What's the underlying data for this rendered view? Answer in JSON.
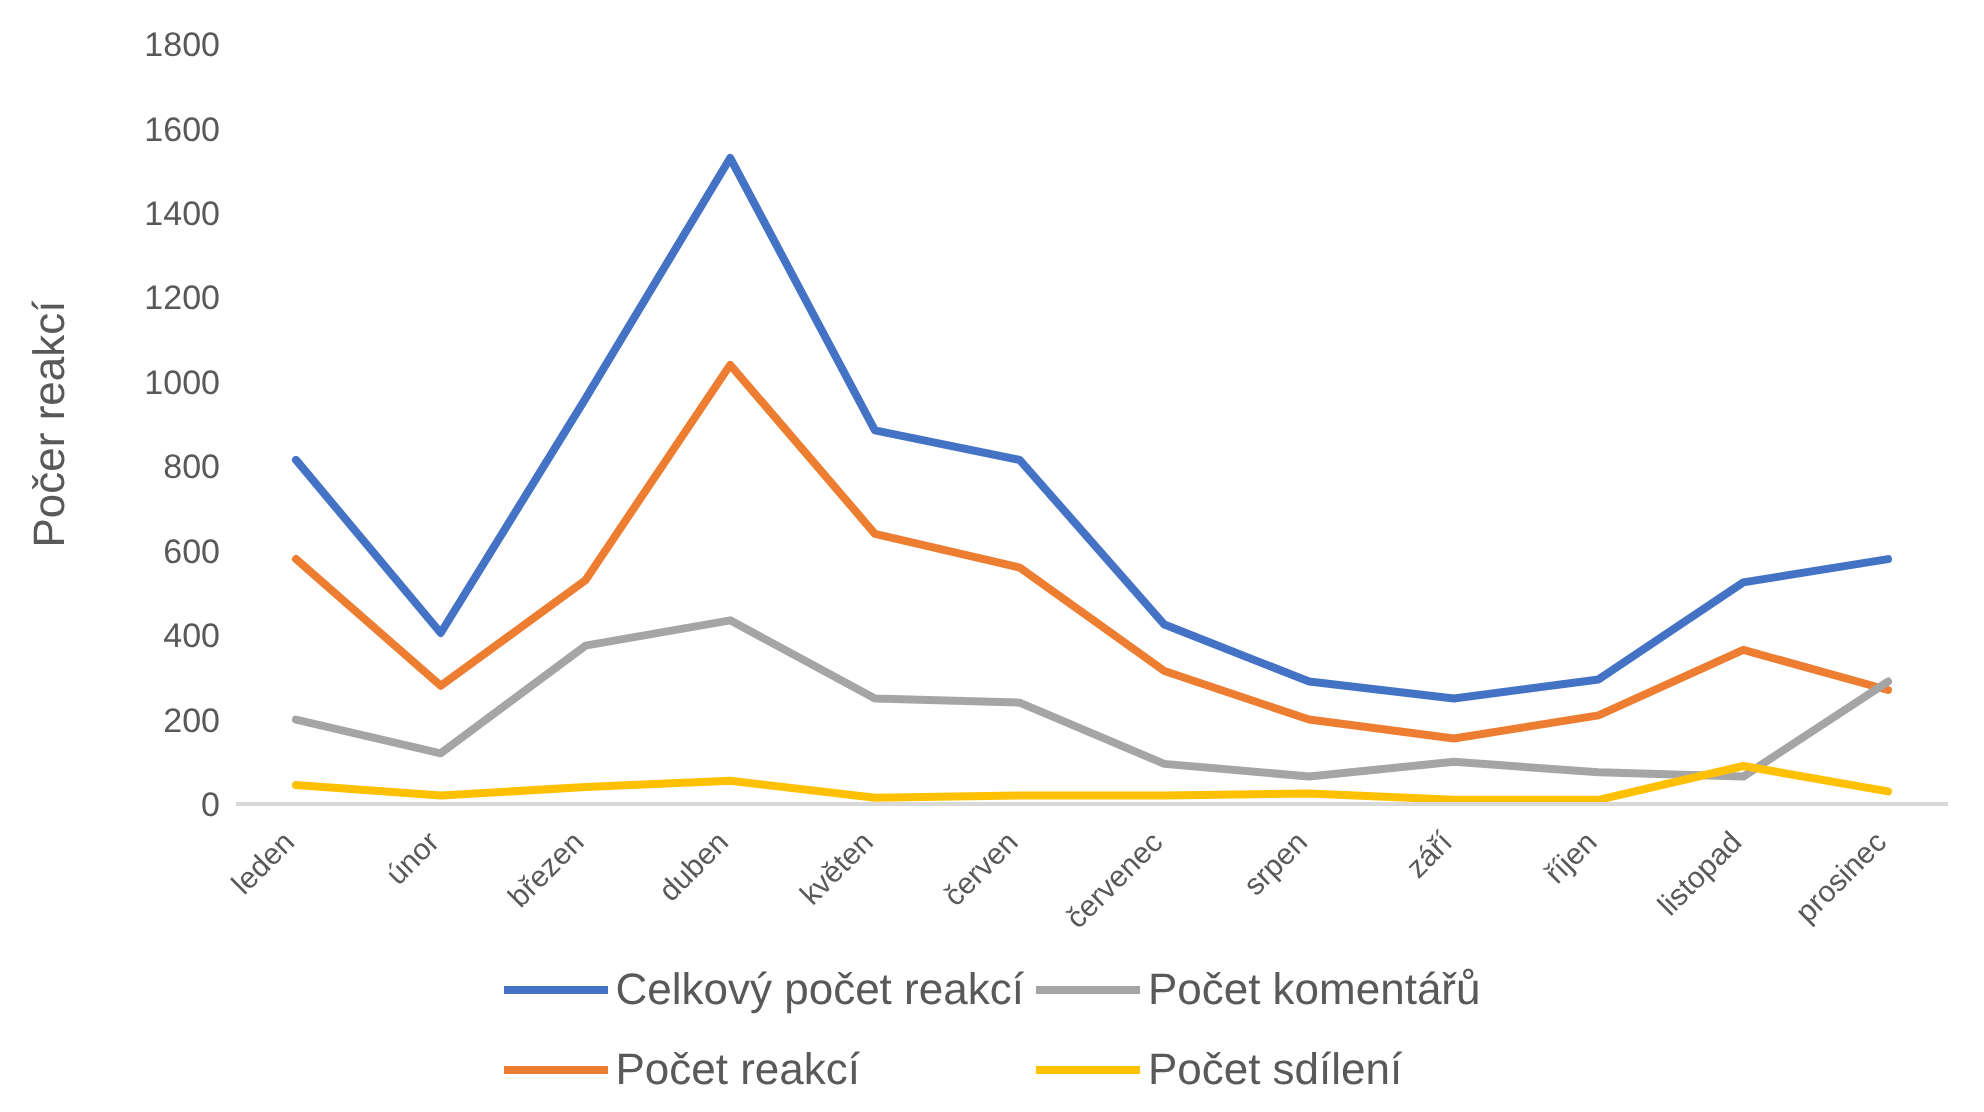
{
  "chart_data": {
    "type": "line",
    "ylabel": "Počer reakcí",
    "categories": [
      "leden",
      "únor",
      "březen",
      "duben",
      "květen",
      "červen",
      "červenec",
      "srpen",
      "září",
      "říjen",
      "listopad",
      "prosinec"
    ],
    "ylim": [
      0,
      1800
    ],
    "yticks": [
      0,
      200,
      400,
      600,
      800,
      1000,
      1200,
      1400,
      1600,
      1800
    ],
    "legend": "bottom",
    "marker": "none",
    "line_style": "solid",
    "series": [
      {
        "name": "Celkový počet reakcí",
        "color": "#4472c4",
        "values": [
          815,
          405,
          960,
          1530,
          885,
          815,
          425,
          290,
          250,
          295,
          525,
          580
        ]
      },
      {
        "name": "Počet reakcí",
        "color": "#ed7d31",
        "values": [
          580,
          280,
          530,
          1040,
          640,
          560,
          315,
          200,
          155,
          210,
          365,
          270
        ]
      },
      {
        "name": "Počet komentářů",
        "color": "#a5a5a5",
        "values": [
          200,
          120,
          375,
          435,
          250,
          240,
          95,
          65,
          100,
          75,
          65,
          290
        ]
      },
      {
        "name": "Počet sdílení",
        "color": "#ffc000",
        "values": [
          45,
          20,
          40,
          55,
          15,
          20,
          20,
          25,
          10,
          10,
          90,
          30
        ]
      }
    ]
  }
}
